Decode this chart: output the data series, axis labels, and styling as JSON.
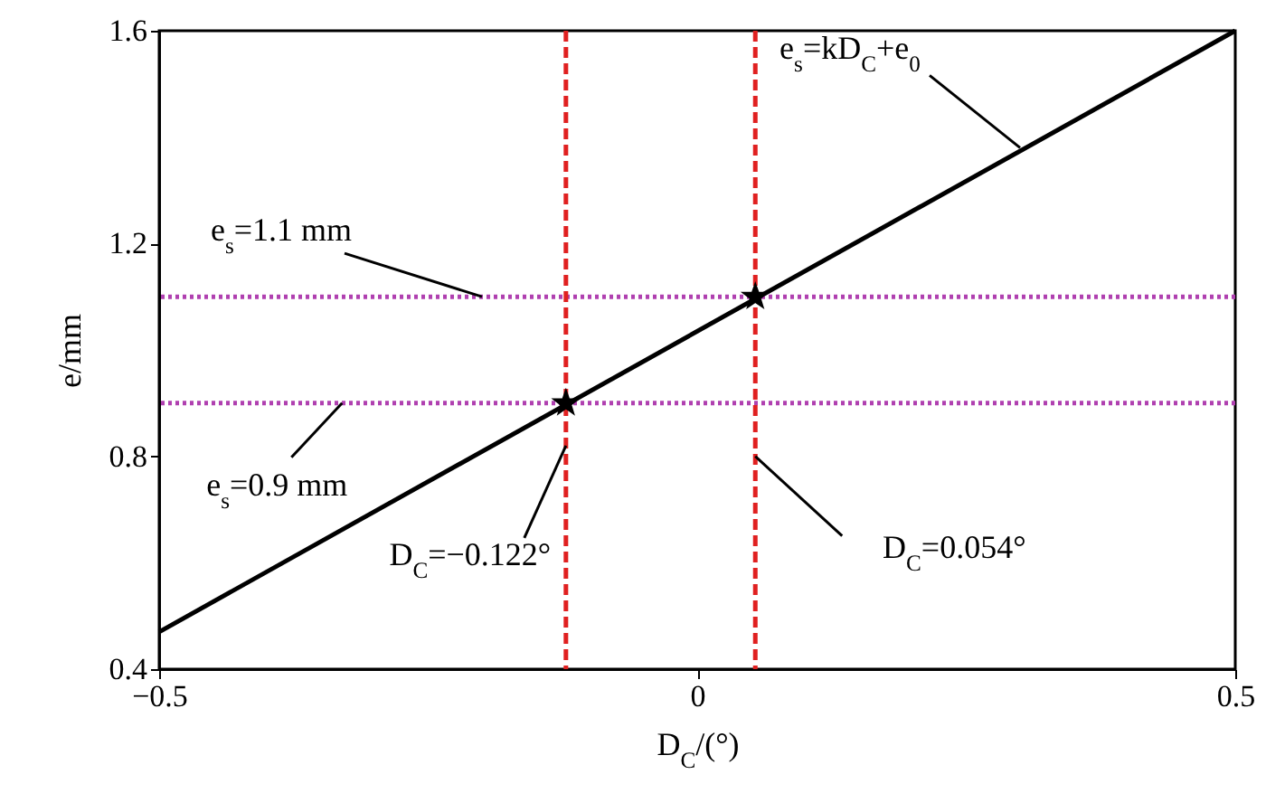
{
  "chart_data": {
    "type": "line",
    "xlabel": "D$_{C}$/(°)",
    "ylabel": "e/mm",
    "xlim": [
      -0.5,
      0.5
    ],
    "ylim": [
      0.4,
      1.6
    ],
    "xticks": [
      -0.5,
      0,
      0.5
    ],
    "yticks": [
      0.4,
      0.8,
      1.2,
      1.6
    ],
    "grid": false,
    "series": [
      {
        "x": [
          -0.5,
          0.5
        ],
        "values": [
          0.47,
          1.6
        ],
        "color": "#000000",
        "line_style": "solid"
      },
      {
        "type": "scatter",
        "x": [
          -0.122,
          0.054
        ],
        "values": [
          0.9,
          1.1
        ],
        "color": "#000000",
        "marker": "star"
      }
    ],
    "ref_lines": [
      {
        "axis": "y",
        "value": 1.1,
        "color": "#b040b0",
        "line_style": "dotted"
      },
      {
        "axis": "y",
        "value": 0.9,
        "color": "#b040b0",
        "line_style": "dotted"
      },
      {
        "axis": "x",
        "value": -0.122,
        "color": "#e02020",
        "line_style": "dashed"
      },
      {
        "axis": "x",
        "value": 0.054,
        "color": "#e02020",
        "line_style": "dashed"
      }
    ],
    "annotations": [
      {
        "text": "e$_{s}$=kD$_{C}$+e$_{0}$",
        "x": 0.3,
        "y": 1.38
      },
      {
        "text": "e$_{s}$=1.1 mm",
        "x": -0.2,
        "y": 1.1
      },
      {
        "text": "e$_{s}$=0.9 mm",
        "x": -0.33,
        "y": 0.9
      },
      {
        "text": "D$_{C}$=−0.122°",
        "x": -0.122,
        "y": 0.82
      },
      {
        "text": "D$_{C}$=0.054°",
        "x": 0.054,
        "y": 0.8
      }
    ]
  }
}
